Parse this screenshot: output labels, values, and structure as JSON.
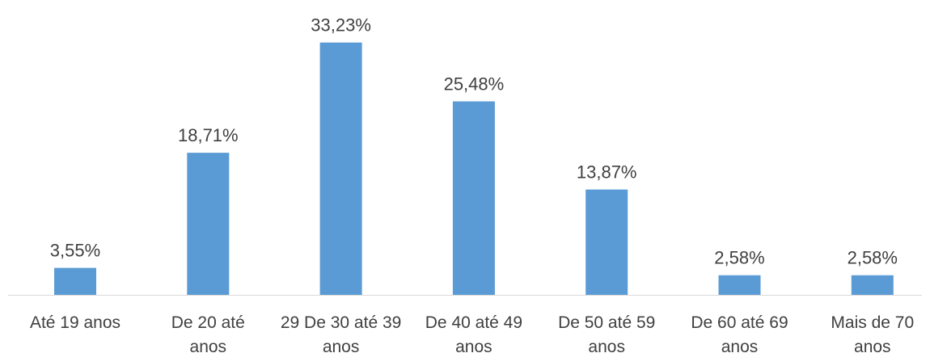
{
  "chart_data": {
    "type": "bar",
    "categories": [
      "Até 19 anos",
      "De 20 até 29 anos",
      "De 30 até 39 anos",
      "De 40 até 49 anos",
      "De 50 até 59 anos",
      "De 60 até 69 anos",
      "Mais de 70 anos"
    ],
    "category_lines": [
      [
        "Até 19 anos"
      ],
      [
        "De 20 até",
        "anos"
      ],
      [
        "29 De 30 até 39",
        "anos"
      ],
      [
        "De 40 até 49",
        "anos"
      ],
      [
        "De 50 até 59",
        "anos"
      ],
      [
        "De 60 até 69",
        "anos"
      ],
      [
        "Mais de 70",
        "anos"
      ]
    ],
    "values": [
      3.55,
      18.71,
      33.23,
      25.48,
      13.87,
      2.58,
      2.58
    ],
    "data_labels": [
      "3,55%",
      "18,71%",
      "33,23%",
      "25,48%",
      "13,87%",
      "2,58%",
      "2,58%"
    ],
    "ylim": [
      0,
      38
    ],
    "grid": false,
    "legend": "none",
    "colors": {
      "bar": "#5b9bd5",
      "axis": "#d9d9d9",
      "text": "#404040"
    }
  }
}
